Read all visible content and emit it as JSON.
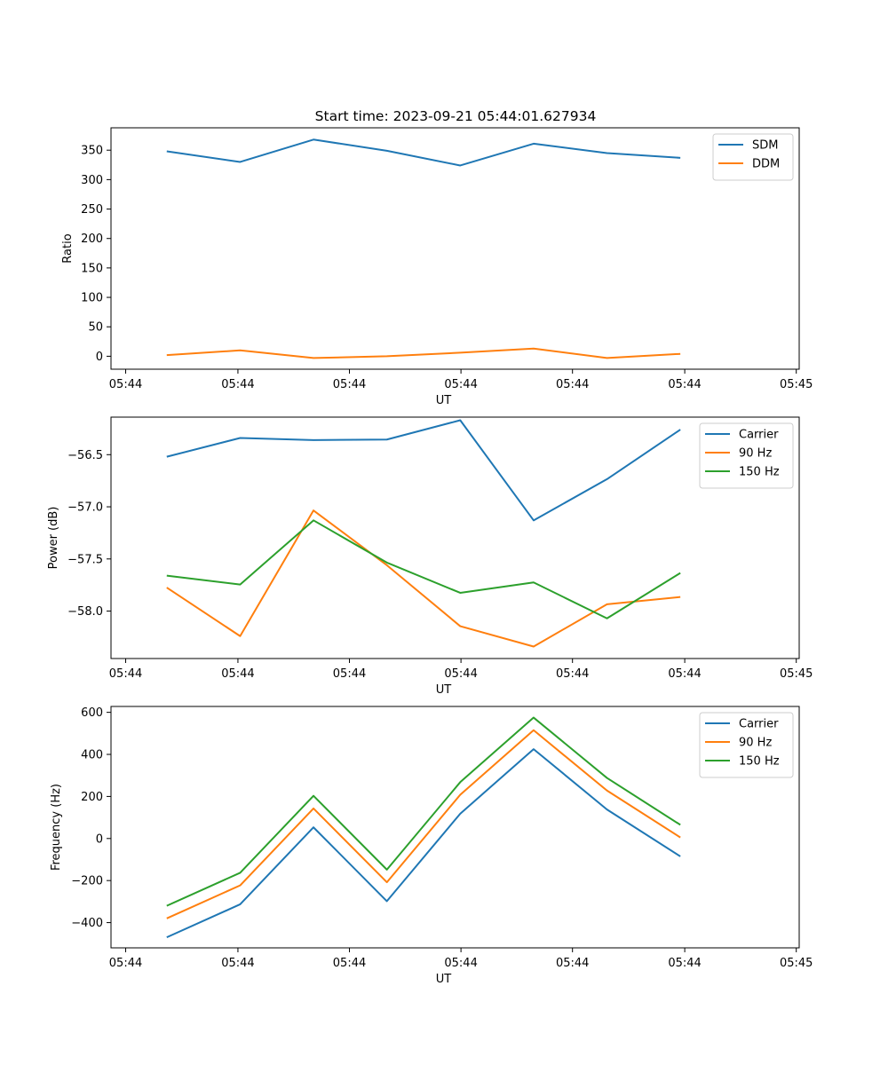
{
  "figure_title": "Start time: 2023-09-21 05:44:01.627934",
  "colors": {
    "blue": "#1f77b4",
    "orange": "#ff7f0e",
    "green": "#2ca02c"
  },
  "chart_data": [
    {
      "type": "line",
      "title": "Start time: 2023-09-21 05:44:01.627934",
      "xlabel": "UT",
      "ylabel": "Ratio",
      "x": [
        1,
        2,
        3,
        4,
        5,
        6,
        7,
        8
      ],
      "xlim": [
        0.24,
        9.62
      ],
      "xticks": [
        0.44,
        1.97,
        3.49,
        5.01,
        6.53,
        8.06,
        9.58
      ],
      "xtick_labels": [
        "05:44",
        "05:44",
        "05:44",
        "05:44",
        "05:44",
        "05:44",
        "05:45"
      ],
      "ylim": [
        -22,
        388
      ],
      "yticks": [
        0,
        50,
        100,
        150,
        200,
        250,
        300,
        350
      ],
      "ytick_labels": [
        "0",
        "50",
        "100",
        "150",
        "200",
        "250",
        "300",
        "350"
      ],
      "legend_position": "top-right",
      "series": [
        {
          "name": "SDM",
          "color": "#1f77b4",
          "values": [
            348,
            330,
            368,
            349,
            324,
            361,
            345,
            337
          ]
        },
        {
          "name": "DDM",
          "color": "#ff7f0e",
          "values": [
            2,
            10,
            -3,
            0,
            6,
            13,
            -3,
            4
          ]
        }
      ]
    },
    {
      "type": "line",
      "title": "",
      "xlabel": "UT",
      "ylabel": "Power (dB)",
      "x": [
        1,
        2,
        3,
        4,
        5,
        6,
        7,
        8
      ],
      "xlim": [
        0.24,
        9.62
      ],
      "xticks": [
        0.44,
        1.97,
        3.49,
        5.01,
        6.53,
        8.06,
        9.58
      ],
      "xtick_labels": [
        "05:44",
        "05:44",
        "05:44",
        "05:44",
        "05:44",
        "05:44",
        "05:45"
      ],
      "ylim": [
        -58.455,
        -56.14
      ],
      "yticks": [
        -58.0,
        -57.5,
        -57.0,
        -56.5
      ],
      "ytick_labels": [
        "−58.0",
        "−57.5",
        "−57.0",
        "−56.5"
      ],
      "legend_position": "top-right",
      "series": [
        {
          "name": "Carrier",
          "color": "#1f77b4",
          "values": [
            -56.52,
            -56.34,
            -56.36,
            -56.355,
            -56.17,
            -57.13,
            -56.735,
            -56.26
          ]
        },
        {
          "name": "90 Hz",
          "color": "#ff7f0e",
          "values": [
            -57.775,
            -58.24,
            -57.035,
            -57.56,
            -58.145,
            -58.34,
            -57.935,
            -57.865
          ]
        },
        {
          "name": "150 Hz",
          "color": "#2ca02c",
          "values": [
            -57.66,
            -57.745,
            -57.13,
            -57.535,
            -57.825,
            -57.725,
            -58.07,
            -57.635
          ]
        }
      ]
    },
    {
      "type": "line",
      "title": "",
      "xlabel": "UT",
      "ylabel": "Frequency (Hz)",
      "x": [
        1,
        2,
        3,
        4,
        5,
        6,
        7,
        8
      ],
      "xlim": [
        0.24,
        9.62
      ],
      "xticks": [
        0.44,
        1.97,
        3.49,
        5.01,
        6.53,
        8.06,
        9.58
      ],
      "xtick_labels": [
        "05:44",
        "05:44",
        "05:44",
        "05:44",
        "05:44",
        "05:44",
        "05:45"
      ],
      "ylim": [
        -520,
        628
      ],
      "yticks": [
        -400,
        -200,
        0,
        200,
        400,
        600
      ],
      "ytick_labels": [
        "−400",
        "−200",
        "0",
        "200",
        "400",
        "600"
      ],
      "legend_position": "top-right",
      "series": [
        {
          "name": "Carrier",
          "color": "#1f77b4",
          "values": [
            -470,
            -313,
            53,
            -298,
            118,
            425,
            138,
            -85
          ]
        },
        {
          "name": "90 Hz",
          "color": "#ff7f0e",
          "values": [
            -380,
            -223,
            143,
            -208,
            208,
            515,
            228,
            5
          ]
        },
        {
          "name": "150 Hz",
          "color": "#2ca02c",
          "values": [
            -320,
            -163,
            203,
            -148,
            268,
            575,
            288,
            65
          ]
        }
      ]
    }
  ]
}
